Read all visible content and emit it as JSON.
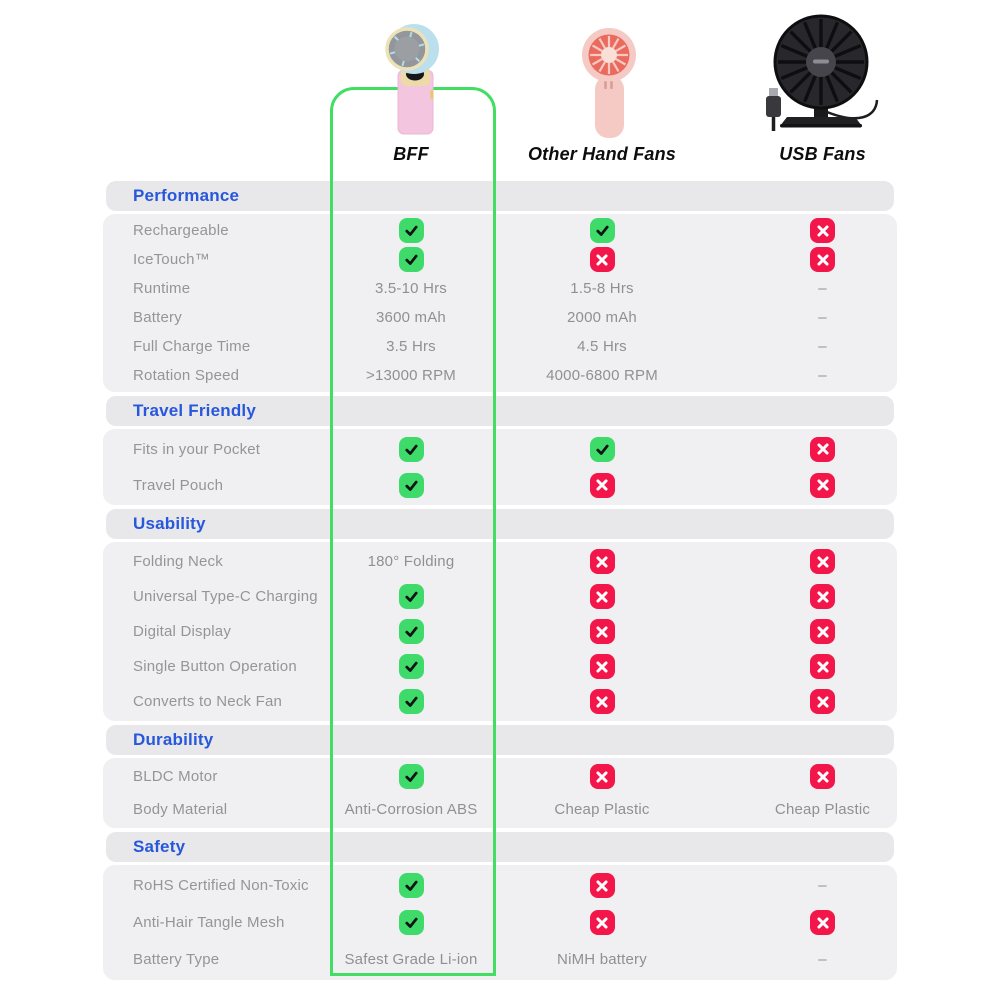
{
  "colors": {
    "section_title": "#2757db",
    "header_bar_bg": "#e8e8ea",
    "body_bg": "#f0f0f2",
    "label_text": "#94949a",
    "value_text": "#8f8f95",
    "check_bg": "#3edb6b",
    "check_glyph": "#141414",
    "cross_bg": "#f3164a",
    "cross_glyph": "#ffffff",
    "highlight_border": "#42dd63",
    "column_title": "#0d0d0d"
  },
  "icons": {
    "check": "check-icon",
    "cross": "cross-icon"
  },
  "products": [
    {
      "name": "BFF",
      "image": "bff-handheld-fan-pink-with-blue-head",
      "highlighted": true
    },
    {
      "name": "Other Hand Fans",
      "image": "pink-handheld-fan",
      "highlighted": false
    },
    {
      "name": "USB Fans",
      "image": "black-usb-desk-fan-with-cable",
      "highlighted": false
    }
  ],
  "chart_data": {
    "type": "table",
    "columns": [
      "BFF",
      "Other Hand Fans",
      "USB Fans"
    ],
    "sections": [
      {
        "title": "Performance",
        "rows": [
          {
            "label": "Rechargeable",
            "values": [
              "icon:check",
              "icon:check",
              "icon:cross"
            ]
          },
          {
            "label": "IceTouch™",
            "values": [
              "icon:check",
              "icon:cross",
              "icon:cross"
            ]
          },
          {
            "label": "Runtime",
            "values": [
              "3.5-10 Hrs",
              "1.5-8 Hrs",
              "–"
            ]
          },
          {
            "label": "Battery",
            "values": [
              "3600 mAh",
              "2000 mAh",
              "–"
            ]
          },
          {
            "label": "Full Charge Time",
            "values": [
              "3.5 Hrs",
              "4.5 Hrs",
              "–"
            ]
          },
          {
            "label": "Rotation Speed",
            "values": [
              ">13000 RPM",
              "4000-6800 RPM",
              "–"
            ]
          }
        ]
      },
      {
        "title": "Travel Friendly",
        "rows": [
          {
            "label": "Fits in your Pocket",
            "values": [
              "icon:check",
              "icon:check",
              "icon:cross"
            ]
          },
          {
            "label": "Travel Pouch",
            "values": [
              "icon:check",
              "icon:cross",
              "icon:cross"
            ]
          }
        ]
      },
      {
        "title": "Usability",
        "rows": [
          {
            "label": "Folding Neck",
            "values": [
              "180° Folding",
              "icon:cross",
              "icon:cross"
            ]
          },
          {
            "label": "Universal Type-C Charging",
            "values": [
              "icon:check",
              "icon:cross",
              "icon:cross"
            ]
          },
          {
            "label": "Digital Display",
            "values": [
              "icon:check",
              "icon:cross",
              "icon:cross"
            ]
          },
          {
            "label": "Single Button Operation",
            "values": [
              "icon:check",
              "icon:cross",
              "icon:cross"
            ]
          },
          {
            "label": "Converts to Neck Fan",
            "values": [
              "icon:check",
              "icon:cross",
              "icon:cross"
            ]
          }
        ]
      },
      {
        "title": "Durability",
        "rows": [
          {
            "label": "BLDC Motor",
            "values": [
              "icon:check",
              "icon:cross",
              "icon:cross"
            ]
          },
          {
            "label": "Body Material",
            "values": [
              "Anti-Corrosion ABS",
              "Cheap Plastic",
              "Cheap Plastic"
            ]
          }
        ]
      },
      {
        "title": "Safety",
        "rows": [
          {
            "label": "RoHS Certified Non-Toxic",
            "values": [
              "icon:check",
              "icon:cross",
              "–"
            ]
          },
          {
            "label": "Anti-Hair Tangle Mesh",
            "values": [
              "icon:check",
              "icon:cross",
              "icon:cross"
            ]
          },
          {
            "label": "Battery Type",
            "values": [
              "Safest Grade Li-ion",
              "NiMH battery",
              "–"
            ]
          }
        ]
      }
    ]
  }
}
